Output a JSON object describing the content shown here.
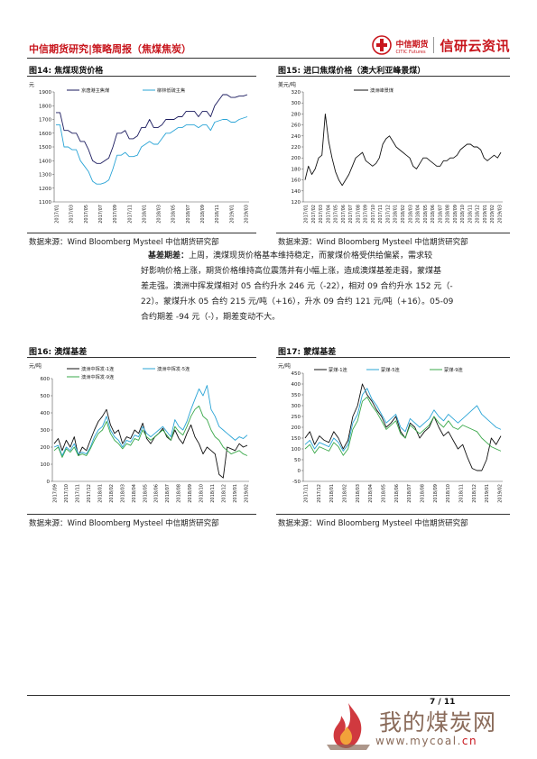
{
  "header": {
    "title": "中信期货研究|策略周报（焦煤焦炭）",
    "logo_cn": "中信期货",
    "logo_en": "CITIC Futures",
    "logo_main": "信研云资讯"
  },
  "figures": {
    "fig14": {
      "title": "图14: 焦煤现货价格",
      "source": "数据来源：Wind Bloomberg Mysteel 中信期货研究部"
    },
    "fig15": {
      "title": "图15: 进口焦煤价格（澳大利亚峰景煤）",
      "source": "数据来源：Wind Bloomberg Mysteel 中信期货研究部"
    },
    "fig16": {
      "title": "图16: 澳煤基差",
      "source": "数据来源：Wind Bloomberg Mysteel 中信期货研究部"
    },
    "fig17": {
      "title": "图17: 蒙煤基差",
      "source": "数据来源：Wind Bloomberg Mysteel 中信期货研究部"
    }
  },
  "body": {
    "lead": "基差期差：",
    "lines": [
      "上周，澳煤现货价格基本维持稳定，而蒙煤价格受供给偏紧，需求较",
      "好影响价格上涨，期货价格维持高位震荡并有小幅上涨，造成澳煤基差走弱，蒙煤基",
      "差走强。澳洲中挥发煤相对 05 合约升水 246 元（-22），相对 09 合约升水 152 元（-",
      "22）。蒙煤升水 05 合约 215 元/吨（+16），升水 09 合约 121 元/吨（+16）。05-09",
      "合约期差 -94 元（-），期差变动不大。"
    ]
  },
  "footer": {
    "page": "7 / 11",
    "watermark": "我的煤炭网",
    "url_prefix": "www.mycoal.",
    "url_suffix": "cn"
  },
  "chart_data": [
    {
      "id": "fig14",
      "type": "line",
      "ylabel": "元",
      "ylim": [
        1100,
        1900
      ],
      "yticks": [
        1100,
        1200,
        1300,
        1400,
        1500,
        1600,
        1700,
        1800,
        1900
      ],
      "xticks": [
        "2017/01",
        "2017/03",
        "2017/05",
        "2017/07",
        "2017/09",
        "2017/11",
        "2018/01",
        "2018/03",
        "2018/05",
        "2018/07",
        "2018/09",
        "2018/11",
        "2019/01",
        "2019/03"
      ],
      "series": [
        {
          "name": "京唐港主焦煤",
          "color": "#1a1a5e",
          "values": [
            1750,
            1750,
            1620,
            1620,
            1600,
            1600,
            1540,
            1540,
            1480,
            1400,
            1380,
            1380,
            1400,
            1420,
            1500,
            1600,
            1600,
            1620,
            1560,
            1560,
            1580,
            1640,
            1640,
            1700,
            1640,
            1640,
            1660,
            1700,
            1700,
            1700,
            1720,
            1720,
            1760,
            1760,
            1760,
            1720,
            1760,
            1760,
            1720,
            1800,
            1840,
            1880,
            1880,
            1860,
            1860,
            1870,
            1870,
            1880
          ]
        },
        {
          "name": "柳林低硫主焦",
          "color": "#2aa4d6",
          "values": [
            1660,
            1660,
            1500,
            1500,
            1480,
            1480,
            1400,
            1360,
            1320,
            1250,
            1230,
            1230,
            1240,
            1260,
            1340,
            1440,
            1440,
            1460,
            1430,
            1430,
            1440,
            1500,
            1520,
            1540,
            1520,
            1520,
            1560,
            1600,
            1600,
            1620,
            1640,
            1640,
            1660,
            1660,
            1660,
            1640,
            1660,
            1660,
            1620,
            1680,
            1690,
            1700,
            1700,
            1680,
            1680,
            1700,
            1710,
            1720
          ]
        }
      ]
    },
    {
      "id": "fig15",
      "type": "line",
      "ylabel": "美元/吨",
      "ylim": [
        120,
        320
      ],
      "yticks": [
        120,
        140,
        160,
        180,
        200,
        220,
        240,
        260,
        280,
        300,
        320
      ],
      "xticks": [
        "2017/01",
        "2017/02",
        "2017/03",
        "2017/04",
        "2017/05",
        "2017/06",
        "2017/07",
        "2017/08",
        "2017/09",
        "2017/10",
        "2017/11",
        "2017/12",
        "2018/01",
        "2018/02",
        "2018/03",
        "2018/04",
        "2018/05",
        "2018/06",
        "2018/07",
        "2018/08",
        "2018/09",
        "2018/10",
        "2018/11",
        "2018/12",
        "2019/01",
        "2019/02",
        "2019/03"
      ],
      "series": [
        {
          "name": "澳洲峰景煤",
          "color": "#111111",
          "values": [
            160,
            185,
            170,
            180,
            200,
            205,
            280,
            230,
            200,
            175,
            160,
            150,
            160,
            170,
            185,
            200,
            205,
            210,
            195,
            190,
            185,
            190,
            200,
            225,
            235,
            240,
            230,
            220,
            215,
            210,
            205,
            200,
            185,
            180,
            190,
            200,
            200,
            195,
            190,
            185,
            185,
            195,
            195,
            200,
            200,
            205,
            215,
            220,
            225,
            225,
            220,
            220,
            215,
            200,
            195,
            200,
            205,
            200,
            210
          ]
        }
      ]
    },
    {
      "id": "fig16",
      "type": "line",
      "ylabel": "元/吨",
      "ylim": [
        0,
        600
      ],
      "yticks": [
        0,
        100,
        200,
        300,
        400,
        500,
        600
      ],
      "xticks": [
        "2017/09",
        "2017/10",
        "2017/11",
        "2017/12",
        "2018/01",
        "2018/02",
        "2018/03",
        "2018/04",
        "2018/05",
        "2018/06",
        "2018/07",
        "2018/08",
        "2018/09",
        "2018/10",
        "2018/11",
        "2018/12",
        "2019/01",
        "2019/02"
      ],
      "series": [
        {
          "name": "澳洲中挥发-1连",
          "color": "#111111",
          "values": [
            220,
            250,
            180,
            240,
            200,
            260,
            150,
            200,
            180,
            240,
            300,
            350,
            380,
            420,
            330,
            280,
            300,
            220,
            260,
            250,
            300,
            280,
            340,
            250,
            220,
            260,
            280,
            310,
            260,
            240,
            300,
            250,
            220,
            280,
            330,
            260,
            220,
            160,
            200,
            180,
            160,
            40,
            20,
            200,
            190,
            180,
            220,
            200,
            210
          ]
        },
        {
          "name": "澳洲中挥发-5连",
          "color": "#2aa4d6",
          "values": [
            200,
            210,
            150,
            200,
            180,
            220,
            160,
            170,
            160,
            200,
            260,
            300,
            320,
            380,
            300,
            260,
            240,
            200,
            240,
            230,
            270,
            260,
            320,
            280,
            260,
            280,
            300,
            320,
            290,
            260,
            360,
            320,
            300,
            350,
            420,
            480,
            540,
            500,
            560,
            420,
            380,
            320,
            300,
            280,
            260,
            240,
            260,
            250,
            270
          ]
        },
        {
          "name": "澳洲中挥发-9连",
          "color": "#3aa84a",
          "values": [
            180,
            200,
            140,
            190,
            170,
            200,
            150,
            160,
            150,
            190,
            240,
            280,
            300,
            350,
            280,
            240,
            220,
            190,
            220,
            210,
            250,
            240,
            300,
            260,
            240,
            260,
            280,
            300,
            270,
            240,
            320,
            290,
            270,
            320,
            380,
            420,
            440,
            380,
            360,
            300,
            260,
            240,
            200,
            180,
            160,
            170,
            180,
            160,
            150
          ]
        }
      ]
    },
    {
      "id": "fig17",
      "type": "line",
      "ylabel": "元/吨",
      "ylim": [
        -50,
        450
      ],
      "yticks": [
        -50,
        0,
        50,
        100,
        150,
        200,
        250,
        300,
        350,
        400,
        450
      ],
      "xticks": [
        "2017/11",
        "2017/12",
        "2018/01",
        "2018/02",
        "2018/03",
        "2018/04",
        "2018/05",
        "2018/06",
        "2018/07",
        "2018/08",
        "2018/09",
        "2018/10",
        "2018/11",
        "2018/12",
        "2019/01",
        "2019/02"
      ],
      "series": [
        {
          "name": "蒙煤-1连",
          "color": "#111111",
          "values": [
            150,
            180,
            120,
            160,
            140,
            130,
            180,
            150,
            100,
            140,
            250,
            300,
            400,
            350,
            320,
            280,
            250,
            200,
            220,
            250,
            180,
            150,
            220,
            200,
            150,
            180,
            200,
            250,
            200,
            160,
            180,
            140,
            100,
            120,
            60,
            10,
            0,
            0,
            50,
            150,
            120,
            160
          ]
        },
        {
          "name": "蒙煤-5连",
          "color": "#2aa4d6",
          "values": [
            120,
            140,
            100,
            130,
            120,
            110,
            150,
            130,
            90,
            120,
            220,
            260,
            350,
            380,
            330,
            300,
            260,
            220,
            240,
            260,
            200,
            180,
            240,
            220,
            200,
            220,
            240,
            280,
            250,
            230,
            260,
            240,
            220,
            240,
            260,
            280,
            300,
            260,
            240,
            220,
            200,
            190
          ]
        },
        {
          "name": "蒙煤-9连",
          "color": "#3aa84a",
          "values": [
            100,
            120,
            80,
            110,
            100,
            90,
            130,
            110,
            70,
            100,
            190,
            230,
            320,
            340,
            300,
            270,
            230,
            190,
            210,
            230,
            170,
            150,
            210,
            190,
            170,
            190,
            210,
            250,
            220,
            200,
            230,
            200,
            190,
            210,
            200,
            190,
            180,
            150,
            130,
            110,
            100,
            90
          ]
        }
      ]
    }
  ]
}
